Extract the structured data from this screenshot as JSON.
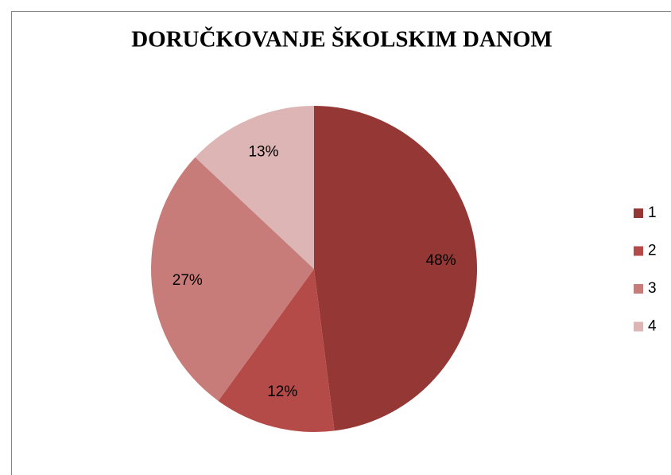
{
  "chart_data": {
    "type": "pie",
    "title": "DORUČKOVANJE ŠKOLSKIM DANOM",
    "categories": [
      "1",
      "2",
      "3",
      "4"
    ],
    "values": [
      48,
      12,
      27,
      13
    ],
    "value_labels": [
      "48%",
      "12%",
      "27%",
      "13%"
    ],
    "colors": [
      "#953735",
      "#b54b48",
      "#c77c7a",
      "#dcb5b4"
    ],
    "legend": "right"
  }
}
